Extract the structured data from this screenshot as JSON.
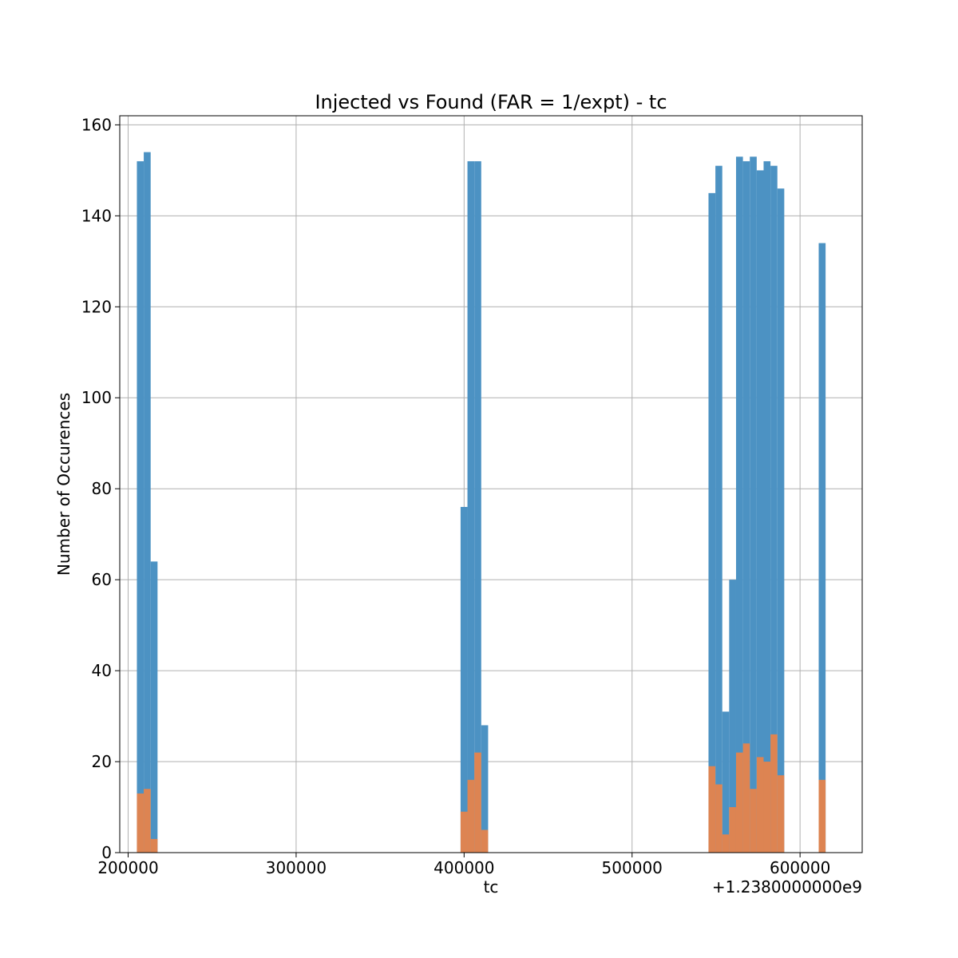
{
  "chart_data": {
    "type": "bar",
    "title": "Injected vs Found (FAR = 1/expt) - tc",
    "xlabel": "tc",
    "ylabel": "Number of Occurences",
    "x_offset_label": "+1.2380000000e9",
    "xlim": [
      195000,
      637000
    ],
    "ylim": [
      0,
      162
    ],
    "x_ticks": [
      200000,
      300000,
      400000,
      500000,
      600000
    ],
    "x_tick_labels": [
      "200000",
      "300000",
      "400000",
      "500000",
      "600000"
    ],
    "y_ticks": [
      0,
      20,
      40,
      60,
      80,
      100,
      120,
      140,
      160
    ],
    "y_tick_labels": [
      "0",
      "20",
      "40",
      "60",
      "80",
      "100",
      "120",
      "140",
      "160"
    ],
    "grid": true,
    "bin_width": 4100,
    "series": [
      {
        "color": "#4c92c3",
        "bins": [
          {
            "x": 205200,
            "value": 152
          },
          {
            "x": 209300,
            "value": 154
          },
          {
            "x": 213400,
            "value": 64
          },
          {
            "x": 397900,
            "value": 76
          },
          {
            "x": 402000,
            "value": 152
          },
          {
            "x": 406100,
            "value": 152
          },
          {
            "x": 410200,
            "value": 28
          },
          {
            "x": 545500,
            "value": 145
          },
          {
            "x": 549600,
            "value": 151
          },
          {
            "x": 553700,
            "value": 31
          },
          {
            "x": 557800,
            "value": 60
          },
          {
            "x": 561900,
            "value": 153
          },
          {
            "x": 566000,
            "value": 152
          },
          {
            "x": 570100,
            "value": 153
          },
          {
            "x": 574200,
            "value": 150
          },
          {
            "x": 578300,
            "value": 152
          },
          {
            "x": 582400,
            "value": 151
          },
          {
            "x": 586500,
            "value": 146
          },
          {
            "x": 611100,
            "value": 134
          }
        ]
      },
      {
        "color": "#dd8452",
        "bins": [
          {
            "x": 205200,
            "value": 13
          },
          {
            "x": 209300,
            "value": 14
          },
          {
            "x": 213400,
            "value": 3
          },
          {
            "x": 397900,
            "value": 9
          },
          {
            "x": 402000,
            "value": 16
          },
          {
            "x": 406100,
            "value": 22
          },
          {
            "x": 410200,
            "value": 5
          },
          {
            "x": 545500,
            "value": 19
          },
          {
            "x": 549600,
            "value": 15
          },
          {
            "x": 553700,
            "value": 4
          },
          {
            "x": 557800,
            "value": 10
          },
          {
            "x": 561900,
            "value": 22
          },
          {
            "x": 566000,
            "value": 24
          },
          {
            "x": 570100,
            "value": 14
          },
          {
            "x": 574200,
            "value": 21
          },
          {
            "x": 578300,
            "value": 20
          },
          {
            "x": 582400,
            "value": 26
          },
          {
            "x": 586500,
            "value": 17
          },
          {
            "x": 611100,
            "value": 16
          }
        ]
      }
    ]
  }
}
